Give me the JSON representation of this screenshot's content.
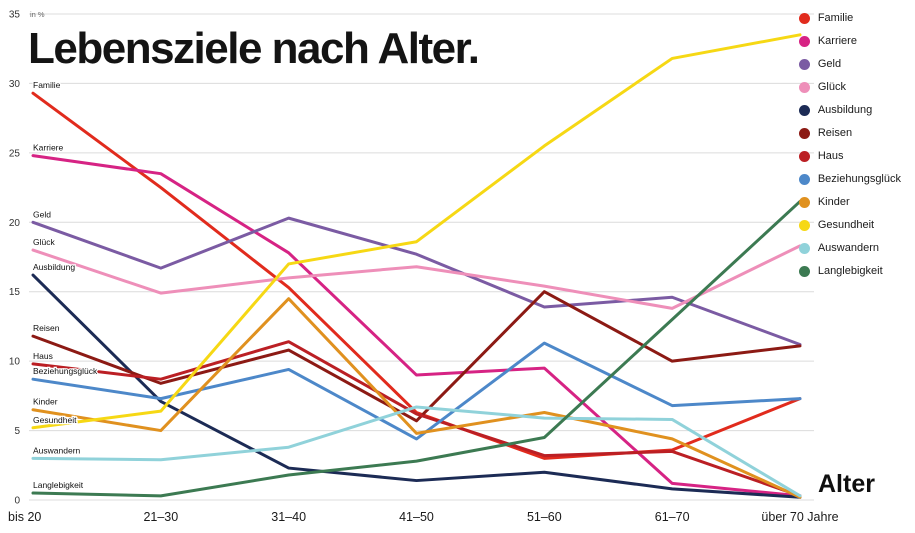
{
  "chart_data": {
    "type": "line",
    "title": "Lebensziele nach Alter.",
    "xlabel": "Alter",
    "unit_label": "in %",
    "categories": [
      "bis 20",
      "21–30",
      "31–40",
      "41–50",
      "51–60",
      "61–70",
      "über 70 Jahre"
    ],
    "ylim": [
      0,
      35
    ],
    "yticks": [
      0,
      5,
      10,
      15,
      20,
      25,
      30,
      35
    ],
    "grid": true,
    "legend_position": "top-right",
    "series_labels_at_line_start": true,
    "series": [
      {
        "name": "Familie",
        "color": "#e12b1d",
        "values": [
          29.3,
          22.5,
          15.3,
          6.3,
          3.0,
          3.6,
          7.3
        ]
      },
      {
        "name": "Karriere",
        "color": "#d62384",
        "values": [
          24.8,
          23.5,
          17.8,
          9.0,
          9.5,
          1.2,
          0.3
        ]
      },
      {
        "name": "Geld",
        "color": "#7b5ba3",
        "values": [
          20.0,
          16.7,
          20.3,
          17.7,
          13.9,
          14.6,
          11.2
        ]
      },
      {
        "name": "Glück",
        "color": "#ee8fb9",
        "values": [
          18.0,
          14.9,
          16.0,
          16.8,
          15.4,
          13.8,
          18.3
        ]
      },
      {
        "name": "Ausbildung",
        "color": "#1c2b55",
        "values": [
          16.2,
          7.1,
          2.3,
          1.4,
          2.0,
          0.8,
          0.2
        ]
      },
      {
        "name": "Reisen",
        "color": "#8c1a14",
        "values": [
          11.8,
          8.4,
          10.8,
          5.7,
          15.0,
          10.0,
          11.1
        ]
      },
      {
        "name": "Haus",
        "color": "#bb1f24",
        "values": [
          9.8,
          8.7,
          11.4,
          6.2,
          3.2,
          3.5,
          0.3
        ]
      },
      {
        "name": "Beziehungsglück",
        "color": "#4d88c9",
        "values": [
          8.7,
          7.3,
          9.4,
          4.4,
          11.3,
          6.8,
          7.3
        ]
      },
      {
        "name": "Kinder",
        "color": "#e0911f",
        "values": [
          6.5,
          5.0,
          14.5,
          4.8,
          6.3,
          4.4,
          0.2
        ]
      },
      {
        "name": "Gesundheit",
        "color": "#f6d814",
        "values": [
          5.2,
          6.4,
          17.0,
          18.6,
          25.5,
          31.8,
          33.5
        ]
      },
      {
        "name": "Auswandern",
        "color": "#90d2da",
        "values": [
          3.0,
          2.9,
          3.8,
          6.7,
          5.9,
          5.8,
          0.3
        ]
      },
      {
        "name": "Langlebigkeit",
        "color": "#3c7a52",
        "values": [
          0.5,
          0.3,
          1.8,
          2.8,
          4.5,
          13.0,
          21.5
        ]
      }
    ]
  }
}
